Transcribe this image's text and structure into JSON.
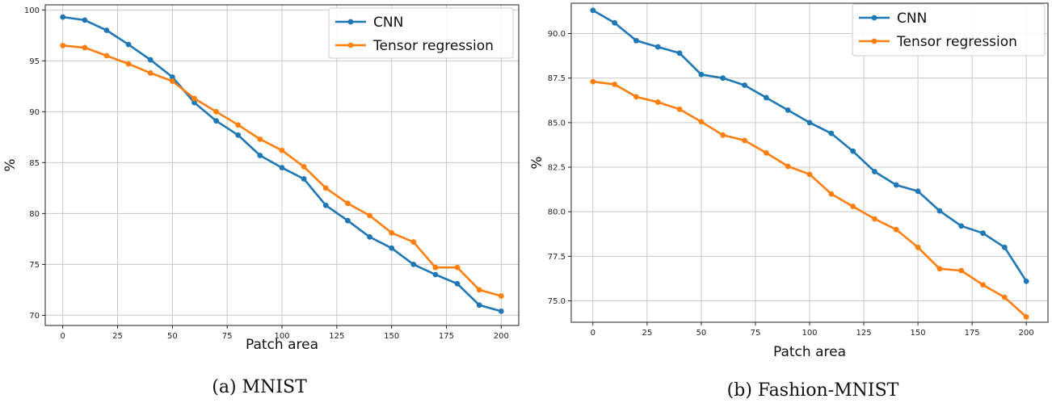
{
  "chart_data": [
    {
      "type": "line",
      "caption": "(a) MNIST",
      "xlabel": "Patch area",
      "ylabel": "%",
      "xlim": [
        -8,
        208
      ],
      "ylim": [
        69.0,
        100.5
      ],
      "xticks": [
        0,
        25,
        50,
        75,
        100,
        125,
        150,
        175,
        200
      ],
      "yticks": [
        70,
        75,
        80,
        85,
        90,
        95,
        100
      ],
      "ytick_labels": [
        "70",
        "75",
        "80",
        "85",
        "90",
        "95",
        "100"
      ],
      "grid": true,
      "legend_position": "top-right",
      "x": [
        0,
        10,
        20,
        30,
        40,
        50,
        60,
        70,
        80,
        90,
        100,
        110,
        120,
        130,
        140,
        150,
        160,
        170,
        180,
        190,
        200
      ],
      "series": [
        {
          "name": "CNN",
          "color": "#1f77b4",
          "values": [
            99.3,
            99.0,
            98.0,
            96.6,
            95.1,
            93.4,
            90.9,
            89.1,
            87.7,
            85.7,
            84.5,
            83.4,
            80.8,
            79.3,
            77.7,
            76.6,
            75.0,
            74.0,
            73.1,
            71.0,
            70.4
          ]
        },
        {
          "name": "Tensor regression",
          "color": "#ff7f0e",
          "values": [
            96.5,
            96.3,
            95.5,
            94.7,
            93.8,
            93.0,
            91.3,
            90.0,
            88.7,
            87.3,
            86.2,
            84.6,
            82.5,
            81.0,
            79.8,
            78.1,
            77.2,
            74.7,
            74.7,
            72.5,
            71.9
          ]
        }
      ]
    },
    {
      "type": "line",
      "caption": "(b) Fashion-MNIST",
      "xlabel": "Patch area",
      "ylabel": "%",
      "xlim": [
        -10,
        210
      ],
      "ylim": [
        73.8,
        91.7
      ],
      "xticks": [
        0,
        25,
        50,
        75,
        100,
        125,
        150,
        175,
        200
      ],
      "yticks": [
        75.0,
        77.5,
        80.0,
        82.5,
        85.0,
        87.5,
        90.0
      ],
      "ytick_labels": [
        "75.0",
        "77.5",
        "80.0",
        "82.5",
        "85.0",
        "87.5",
        "90.0"
      ],
      "grid": true,
      "legend_position": "top-right",
      "x": [
        0,
        10,
        20,
        30,
        40,
        50,
        60,
        70,
        80,
        90,
        100,
        110,
        120,
        130,
        140,
        150,
        160,
        170,
        180,
        190,
        200
      ],
      "series": [
        {
          "name": "CNN",
          "color": "#1f77b4",
          "values": [
            91.3,
            90.6,
            89.6,
            89.25,
            88.9,
            87.7,
            87.5,
            87.1,
            86.4,
            85.7,
            85.0,
            84.4,
            83.4,
            82.25,
            81.5,
            81.15,
            80.05,
            79.2,
            78.8,
            78.0,
            76.1
          ]
        },
        {
          "name": "Tensor regression",
          "color": "#ff7f0e",
          "values": [
            87.3,
            87.15,
            86.45,
            86.15,
            85.75,
            85.05,
            84.3,
            84.0,
            83.3,
            82.55,
            82.1,
            81.0,
            80.3,
            79.6,
            79.0,
            78.0,
            76.8,
            76.7,
            75.9,
            75.2,
            74.1
          ]
        }
      ]
    }
  ]
}
